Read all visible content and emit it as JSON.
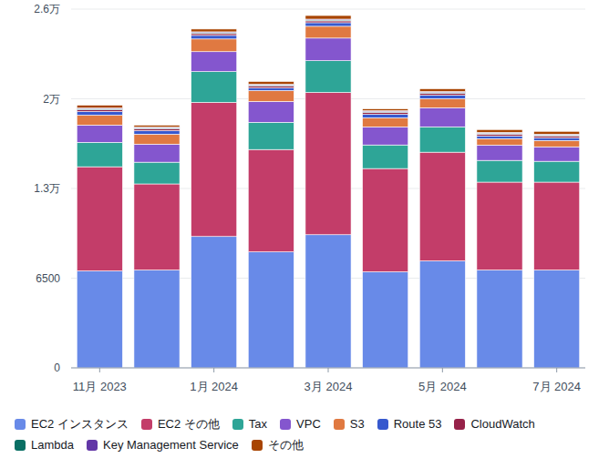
{
  "chart_data": {
    "type": "bar",
    "stacked": true,
    "grid": true,
    "legend": "bottom",
    "categories": [
      "11月 2023",
      null,
      "1月 2024",
      null,
      "3月 2024",
      null,
      "5月 2024",
      null,
      "7月 2024"
    ],
    "ylim": [
      0,
      26000
    ],
    "yticks": [
      0,
      6500,
      {
        "value": 13000,
        "label": "1.3万"
      },
      {
        "value": 19500,
        "label": "2万"
      },
      {
        "value": 26000,
        "label": "2.6万"
      }
    ],
    "series": [
      {
        "name": "EC2 インスタンス",
        "color": "#688ae8",
        "values": [
          7025,
          7090,
          9520,
          8405,
          9650,
          6960,
          7750,
          7090,
          7090
        ]
      },
      {
        "name": "EC2 その他",
        "color": "#c33d69",
        "values": [
          7550,
          6240,
          9720,
          7420,
          10310,
          7485,
          7880,
          6370,
          6370
        ]
      },
      {
        "name": "Tax",
        "color": "#2ea597",
        "values": [
          1770,
          1575,
          2230,
          1970,
          2300,
          1710,
          1840,
          1575,
          1510
        ]
      },
      {
        "name": "VPC",
        "color": "#8456ce",
        "values": [
          1250,
          1310,
          1445,
          1510,
          1640,
          1310,
          1380,
          1115,
          1050
        ]
      },
      {
        "name": "S3",
        "color": "#e07941",
        "values": [
          720,
          720,
          920,
          790,
          855,
          655,
          655,
          460,
          460
        ]
      },
      {
        "name": "Route 53",
        "color": "#3759ce",
        "values": [
          260,
          260,
          260,
          200,
          260,
          260,
          260,
          200,
          200
        ]
      },
      {
        "name": "CloudWatch",
        "color": "#962249",
        "values": [
          130,
          130,
          130,
          130,
          130,
          130,
          130,
          130,
          130
        ]
      },
      {
        "name": "Lambda",
        "color": "#096f64",
        "values": [
          65,
          65,
          65,
          65,
          65,
          65,
          65,
          65,
          65
        ]
      },
      {
        "name": "Key Management Service",
        "color": "#6237a7",
        "values": [
          65,
          65,
          65,
          65,
          65,
          65,
          65,
          65,
          65
        ]
      },
      {
        "name": "その他",
        "color": "#a84401",
        "values": [
          200,
          130,
          200,
          200,
          260,
          130,
          200,
          200,
          200
        ]
      }
    ]
  }
}
